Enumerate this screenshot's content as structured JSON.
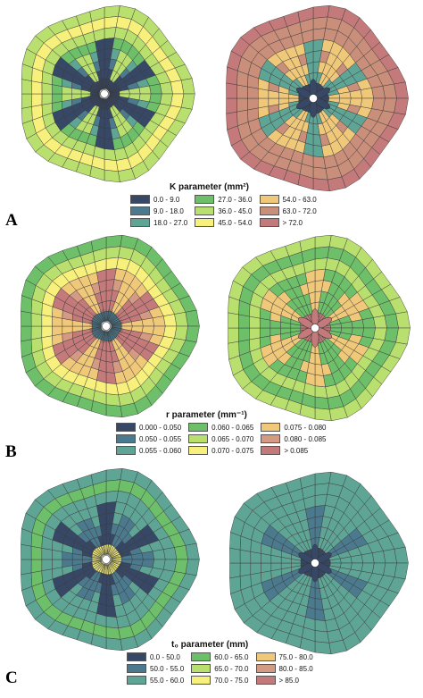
{
  "panels": [
    {
      "id": "A",
      "letter": "A",
      "legend_title": "K parameter (mm²)",
      "legend": [
        {
          "label": "0.0 - 9.0",
          "color": "#374766"
        },
        {
          "label": "27.0 - 36.0",
          "color": "#6ebf6a"
        },
        {
          "label": "54.0 - 63.0",
          "color": "#f0c87a"
        },
        {
          "label": "9.0 - 18.0",
          "color": "#4b7a8e"
        },
        {
          "label": "36.0 - 45.0",
          "color": "#b9e06e"
        },
        {
          "label": "63.0 - 72.0",
          "color": "#c98f7a"
        },
        {
          "label": "18.0 - 27.0",
          "color": "#5fa596"
        },
        {
          "label": "45.0 - 54.0",
          "color": "#f7f07c"
        },
        {
          "label": "> 72.0",
          "color": "#c47a7a"
        }
      ]
    },
    {
      "id": "B",
      "letter": "B",
      "legend_title": "r parameter (mm⁻¹)",
      "legend": [
        {
          "label": "0.000 - 0.050",
          "color": "#374766"
        },
        {
          "label": "0.060 - 0.065",
          "color": "#6ebf6a"
        },
        {
          "label": "0.075 - 0.080",
          "color": "#f0c87a"
        },
        {
          "label": "0.050 - 0.055",
          "color": "#4b7a8e"
        },
        {
          "label": "0.065 - 0.070",
          "color": "#b9e06e"
        },
        {
          "label": "0.080 - 0.085",
          "color": "#d49a84"
        },
        {
          "label": "0.055 - 0.060",
          "color": "#5fa596"
        },
        {
          "label": "0.070 - 0.075",
          "color": "#f7f07c"
        },
        {
          "label": "> 0.085",
          "color": "#c47a7a"
        }
      ]
    },
    {
      "id": "C",
      "letter": "C",
      "legend_title": "t₀ parameter (mm)",
      "legend": [
        {
          "label": "0.0 - 50.0",
          "color": "#374766"
        },
        {
          "label": "60.0 - 65.0",
          "color": "#6ebf6a"
        },
        {
          "label": "75.0 - 80.0",
          "color": "#f0c87a"
        },
        {
          "label": "50.0 - 55.0",
          "color": "#4b7a8e"
        },
        {
          "label": "65.0 - 70.0",
          "color": "#b9e06e"
        },
        {
          "label": "80.0 - 85.0",
          "color": "#d49a84"
        },
        {
          "label": "55.0 - 60.0",
          "color": "#5fa596"
        },
        {
          "label": "70.0 - 75.0",
          "color": "#f7f07c"
        },
        {
          "label": "> 85.0",
          "color": "#c47a7a"
        }
      ]
    }
  ],
  "maps": {
    "A_left": {
      "ringColors": [
        "#374766",
        "#374766",
        "#4b7a8e",
        "#5fa596",
        "#6ebf6a",
        "#b9e06e",
        "#f7f07c",
        "#b9e06e"
      ],
      "armColor": "#374766",
      "gapColor": "#b9e06e",
      "center": "dense"
    },
    "A_right": {
      "ringColors": [
        "#374766",
        "#5fa596",
        "#f0c87a",
        "#c98f7a",
        "#f0c87a",
        "#c98f7a",
        "#c98f7a",
        "#c47a7a"
      ],
      "armColor": "#5fa596",
      "gapColor": "#f0c87a",
      "center": "petals"
    },
    "B_left": {
      "ringColors": [
        "#4b7a8e",
        "#c47a7a",
        "#c47a7a",
        "#d49a84",
        "#f0c87a",
        "#f7f07c",
        "#b9e06e",
        "#6ebf6a"
      ],
      "armColor": "#c47a7a",
      "gapColor": "#f0c87a",
      "center": "dense"
    },
    "B_right": {
      "ringColors": [
        "#c47a7a",
        "#6ebf6a",
        "#6ebf6a",
        "#f0c87a",
        "#6ebf6a",
        "#b9e06e",
        "#6ebf6a",
        "#b9e06e"
      ],
      "armColor": "#f0c87a",
      "gapColor": "#6ebf6a",
      "center": "petals"
    },
    "C_left": {
      "ringColors": [
        "#f7f07c",
        "#374766",
        "#4b7a8e",
        "#5fa596",
        "#5fa596",
        "#5fa596",
        "#6ebf6a",
        "#5fa596"
      ],
      "armColor": "#374766",
      "gapColor": "#4b7a8e",
      "center": "dense"
    },
    "C_right": {
      "ringColors": [
        "#374766",
        "#5fa596",
        "#5fa596",
        "#5fa596",
        "#5fa596",
        "#5fa596",
        "#5fa596",
        "#5fa596"
      ],
      "armColor": "#4b7a8e",
      "gapColor": "#5fa596",
      "center": "petals"
    }
  }
}
